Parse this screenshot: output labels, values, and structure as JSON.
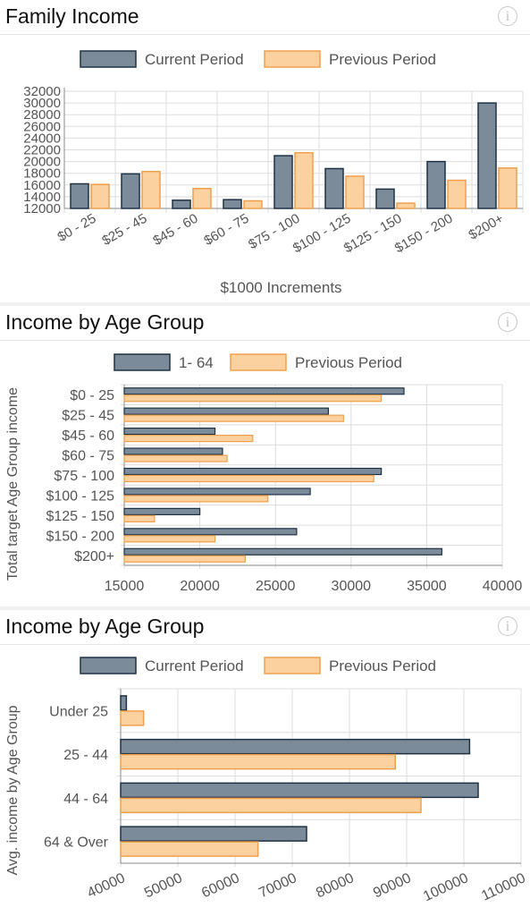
{
  "panels": [
    {
      "title": "Family Income",
      "info_icon": "info-icon"
    },
    {
      "title": "Income by Age Group",
      "info_icon": "info-icon"
    },
    {
      "title": "Income by Age Group",
      "info_icon": "info-icon"
    }
  ],
  "colors": {
    "current_fill": "#7b8b99",
    "current_stroke": "#1f3244",
    "previous_fill": "#fbd1a0",
    "previous_stroke": "#f0a04c",
    "grid": "#dddddd",
    "axis": "#888888",
    "text": "#555555"
  },
  "chart_data": [
    {
      "type": "bar",
      "orientation": "vertical",
      "categories": [
        "$0 - 25",
        "$25 - 45",
        "$45 - 60",
        "$60 - 75",
        "$75 - 100",
        "$100 - 125",
        "$125 - 150",
        "$150 - 200",
        "$200+"
      ],
      "series": [
        {
          "name": "Current Period",
          "values": [
            16200,
            17900,
            13400,
            13500,
            21000,
            18800,
            15300,
            20000,
            30000
          ]
        },
        {
          "name": "Previous Period",
          "values": [
            16100,
            18300,
            15400,
            13300,
            21500,
            17500,
            12900,
            16800,
            18900
          ]
        }
      ],
      "xlabel": "$1000 Increments",
      "ylabel": "",
      "ylim": [
        12000,
        32000
      ],
      "yticks": [
        12000,
        14000,
        16000,
        18000,
        20000,
        22000,
        24000,
        26000,
        28000,
        30000,
        32000
      ],
      "legend": "top",
      "grid": true
    },
    {
      "type": "bar",
      "orientation": "horizontal",
      "categories": [
        "$0 - 25",
        "$25 - 45",
        "$45 - 60",
        "$60 - 75",
        "$75 - 100",
        "$100 - 125",
        "$125 - 150",
        "$150 - 200",
        "$200+"
      ],
      "series": [
        {
          "name": "1- 64",
          "values": [
            33500,
            28500,
            21000,
            21500,
            32000,
            27300,
            20000,
            26400,
            36000
          ]
        },
        {
          "name": "Previous Period",
          "values": [
            32000,
            29500,
            23500,
            21800,
            31500,
            24500,
            17000,
            21000,
            23000
          ]
        }
      ],
      "xlabel": "",
      "ylabel": "Total target Age Group income",
      "xlim": [
        15000,
        40000
      ],
      "xticks": [
        15000,
        20000,
        25000,
        30000,
        35000,
        40000
      ],
      "legend": "top",
      "grid": true
    },
    {
      "type": "bar",
      "orientation": "horizontal",
      "categories": [
        "Under 25",
        "25 - 44",
        "44 - 64",
        "64 & Over"
      ],
      "series": [
        {
          "name": "Current Period",
          "values": [
            41000,
            101000,
            102500,
            72500
          ]
        },
        {
          "name": "Previous Period",
          "values": [
            44000,
            88000,
            92500,
            64000
          ]
        }
      ],
      "xlabel": "",
      "ylabel": "Avg. income by Age Group",
      "xlim": [
        40000,
        110000
      ],
      "xticks": [
        40000,
        50000,
        60000,
        70000,
        80000,
        90000,
        100000,
        110000
      ],
      "legend": "top",
      "grid": true
    }
  ]
}
